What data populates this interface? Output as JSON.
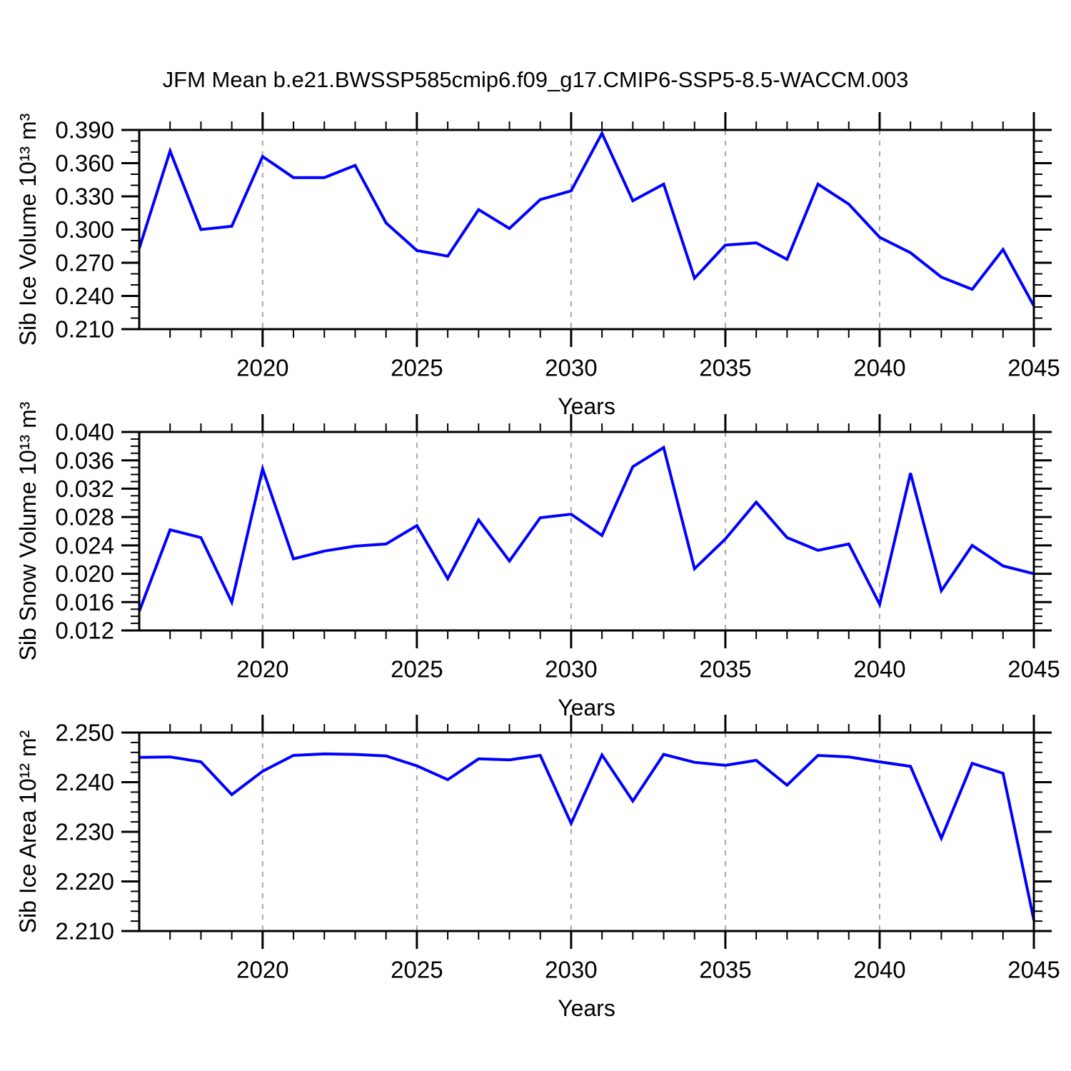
{
  "title": "JFM Mean b.e21.BWSSP585cmip6.f09_g17.CMIP6-SSP5-8.5-WACCM.003",
  "colors": {
    "line": "#0000FF",
    "axis": "#000000",
    "grid": "#A6A6A6",
    "background": "#FFFFFF"
  },
  "chart_data": [
    {
      "type": "line",
      "name": "sib-ice-volume",
      "ylabel": "Sib Ice Volume 10¹³ m³",
      "xlabel": "Years",
      "x": [
        2016,
        2017,
        2018,
        2019,
        2020,
        2021,
        2022,
        2023,
        2024,
        2025,
        2026,
        2027,
        2028,
        2029,
        2030,
        2031,
        2032,
        2033,
        2034,
        2035,
        2036,
        2037,
        2038,
        2039,
        2040,
        2041,
        2042,
        2043,
        2044,
        2045
      ],
      "values": [
        0.283,
        0.371,
        0.3,
        0.303,
        0.366,
        0.347,
        0.347,
        0.358,
        0.306,
        0.281,
        0.276,
        0.318,
        0.301,
        0.327,
        0.335,
        0.387,
        0.326,
        0.341,
        0.256,
        0.286,
        0.288,
        0.273,
        0.341,
        0.323,
        0.293,
        0.279,
        0.257,
        0.246,
        0.282,
        0.231
      ],
      "ylim": [
        0.21,
        0.39
      ],
      "y_major_step": 0.03,
      "y_minor_step": 0.01,
      "y_tick_labels": [
        "0.210",
        "0.240",
        "0.270",
        "0.300",
        "0.330",
        "0.360",
        "0.390"
      ],
      "xlim": [
        2016,
        2045
      ],
      "x_major_ticks": [
        2020,
        2025,
        2030,
        2035,
        2040,
        2045
      ],
      "x_minor_step": 1,
      "grid_years": [
        2020,
        2025,
        2030,
        2035,
        2040
      ],
      "grid": "vertical-dashed",
      "legend": "none"
    },
    {
      "type": "line",
      "name": "sib-snow-volume",
      "ylabel": "Sib Snow Volume 10¹³ m³",
      "xlabel": "Years",
      "x": [
        2016,
        2017,
        2018,
        2019,
        2020,
        2021,
        2022,
        2023,
        2024,
        2025,
        2026,
        2027,
        2028,
        2029,
        2030,
        2031,
        2032,
        2033,
        2034,
        2035,
        2036,
        2037,
        2038,
        2039,
        2040,
        2041,
        2042,
        2043,
        2044,
        2045
      ],
      "values": [
        0.0147,
        0.0262,
        0.0251,
        0.016,
        0.0348,
        0.0221,
        0.0232,
        0.0239,
        0.0242,
        0.0268,
        0.0193,
        0.0276,
        0.0218,
        0.0279,
        0.0284,
        0.0254,
        0.0351,
        0.0378,
        0.0207,
        0.0249,
        0.0301,
        0.0251,
        0.0233,
        0.0242,
        0.0157,
        0.0342,
        0.0176,
        0.024,
        0.0211,
        0.02
      ],
      "ylim": [
        0.012,
        0.04
      ],
      "y_major_step": 0.004,
      "y_minor_step": 0.001,
      "y_tick_labels": [
        "0.012",
        "0.016",
        "0.020",
        "0.024",
        "0.028",
        "0.032",
        "0.036",
        "0.040"
      ],
      "xlim": [
        2016,
        2045
      ],
      "x_major_ticks": [
        2020,
        2025,
        2030,
        2035,
        2040,
        2045
      ],
      "x_minor_step": 1,
      "grid_years": [
        2020,
        2025,
        2030,
        2035,
        2040
      ],
      "grid": "vertical-dashed",
      "legend": "none"
    },
    {
      "type": "line",
      "name": "sib-ice-area",
      "ylabel": "Sib Ice Area 10¹² m²",
      "xlabel": "Years",
      "x": [
        2016,
        2017,
        2018,
        2019,
        2020,
        2021,
        2022,
        2023,
        2024,
        2025,
        2026,
        2027,
        2028,
        2029,
        2030,
        2031,
        2032,
        2033,
        2034,
        2035,
        2036,
        2037,
        2038,
        2039,
        2040,
        2041,
        2042,
        2043,
        2044,
        2045
      ],
      "values": [
        2.245,
        2.2451,
        2.2441,
        2.2375,
        2.2422,
        2.2454,
        2.2457,
        2.2456,
        2.2453,
        2.2433,
        2.2405,
        2.2447,
        2.2445,
        2.2454,
        2.2317,
        2.2455,
        2.2362,
        2.2456,
        2.244,
        2.2434,
        2.2444,
        2.2394,
        2.2454,
        2.2451,
        2.2441,
        2.2432,
        2.2287,
        2.2438,
        2.2418,
        2.2122
      ],
      "ylim": [
        2.21,
        2.25
      ],
      "y_major_step": 0.01,
      "y_minor_step": 0.002,
      "y_tick_labels": [
        "2.210",
        "2.220",
        "2.230",
        "2.240",
        "2.250"
      ],
      "xlim": [
        2016,
        2045
      ],
      "x_major_ticks": [
        2020,
        2025,
        2030,
        2035,
        2040,
        2045
      ],
      "x_minor_step": 1,
      "grid_years": [
        2020,
        2025,
        2030,
        2035,
        2040
      ],
      "grid": "vertical-dashed",
      "legend": "none"
    }
  ]
}
